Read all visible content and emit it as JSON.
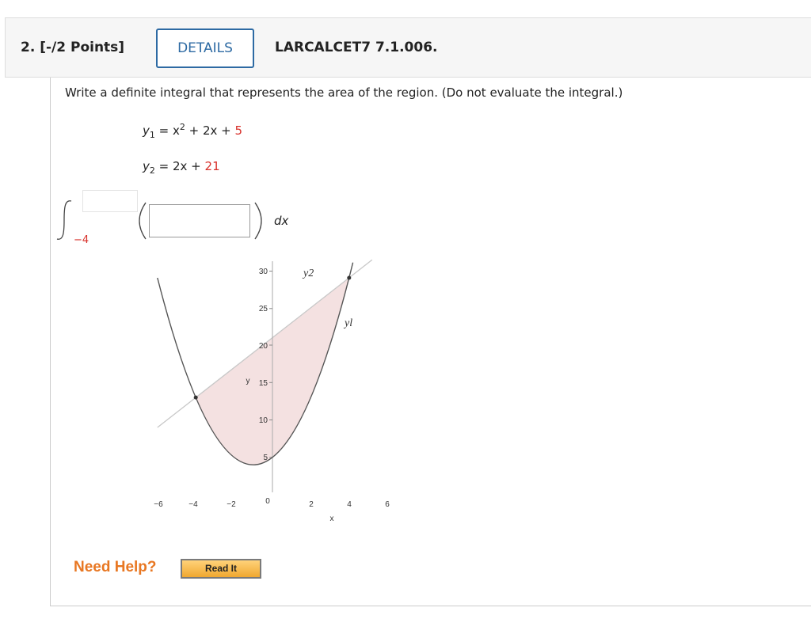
{
  "question": {
    "heading": "2. [-/2 Points]",
    "details": "DETAILS",
    "code": "LARCALCET7 7.1.006."
  },
  "prompt": "Write a definite integral that represents the area of the region. (Do not evaluate the integral.)",
  "equations": [
    {
      "var": "y",
      "sub": "1",
      "mid": " = x",
      "sup": "2",
      "rest": " + 2x + ",
      "const": "5"
    },
    {
      "var": "y",
      "sub": "2",
      "mid": " = 2x + ",
      "const": "21"
    }
  ],
  "integral": {
    "lower": "−4",
    "dx": "dx"
  },
  "graph": {
    "yticks": [
      "30",
      "25",
      "20",
      "15",
      "10",
      "5"
    ],
    "xticks": [
      "−6",
      "−4",
      "−2",
      "0",
      "2",
      "4",
      "6"
    ],
    "curve_labels": [
      "y2",
      "yl"
    ],
    "ylabel": "y",
    "xlabel": "x"
  },
  "help": {
    "label": "Need Help?",
    "button": "Read It"
  }
}
